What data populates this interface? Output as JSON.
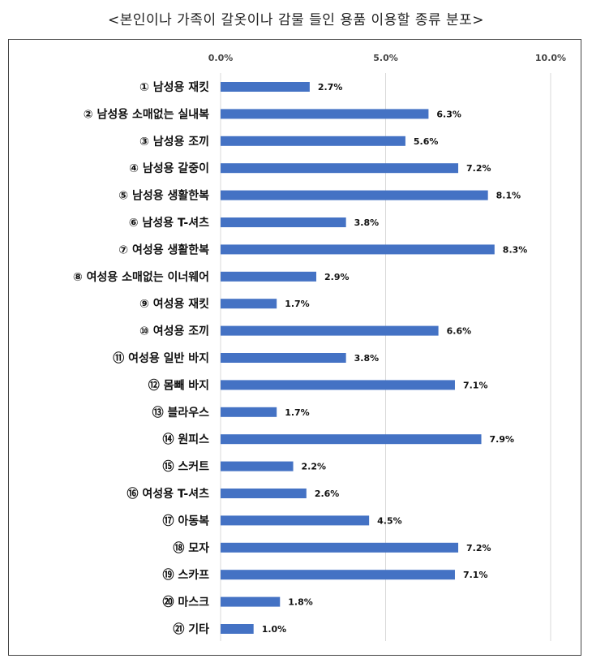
{
  "chart_data": {
    "type": "bar",
    "orientation": "horizontal",
    "title": "<본인이나 가족이 갈옷이나 감물 들인 용품 이용할 종류 분포>",
    "xlabel": "",
    "ylabel": "",
    "xlim": [
      0,
      10
    ],
    "x_tick_labels": [
      "0.0%",
      "5.0%",
      "10.0%"
    ],
    "grid": "vertical",
    "bar_color": "#4472C4",
    "categories": [
      "① 남성용 재킷",
      "② 남성용 소매없는 실내복",
      "③ 남성용 조끼",
      "④ 남성용 갈중이",
      "⑤ 남성용 생활한복",
      "⑥ 남성용 T-셔츠",
      "⑦ 여성용 생활한복",
      "⑧ 여성용 소매없는 이너웨어",
      "⑨ 여성용 재킷",
      "⑩ 여성용 조끼",
      "⑪ 여성용 일반 바지",
      "⑫ 몸빼 바지",
      "⑬ 블라우스",
      "⑭ 원피스",
      "⑮ 스커트",
      "⑯ 여성용 T-셔츠",
      "⑰ 아동복",
      "⑱ 모자",
      "⑲ 스카프",
      "⑳ 마스크",
      "㉑ 기타"
    ],
    "values": [
      2.7,
      6.3,
      5.6,
      7.2,
      8.1,
      3.8,
      8.3,
      2.9,
      1.7,
      6.6,
      3.8,
      7.1,
      1.7,
      7.9,
      2.2,
      2.6,
      4.5,
      7.2,
      7.1,
      1.8,
      1.0
    ],
    "value_labels": [
      "2.7%",
      "6.3%",
      "5.6%",
      "7.2%",
      "8.1%",
      "3.8%",
      "8.3%",
      "2.9%",
      "1.7%",
      "6.6%",
      "3.8%",
      "7.1%",
      "1.7%",
      "7.9%",
      "2.2%",
      "2.6%",
      "4.5%",
      "7.2%",
      "7.1%",
      "1.8%",
      "1.0%"
    ]
  }
}
